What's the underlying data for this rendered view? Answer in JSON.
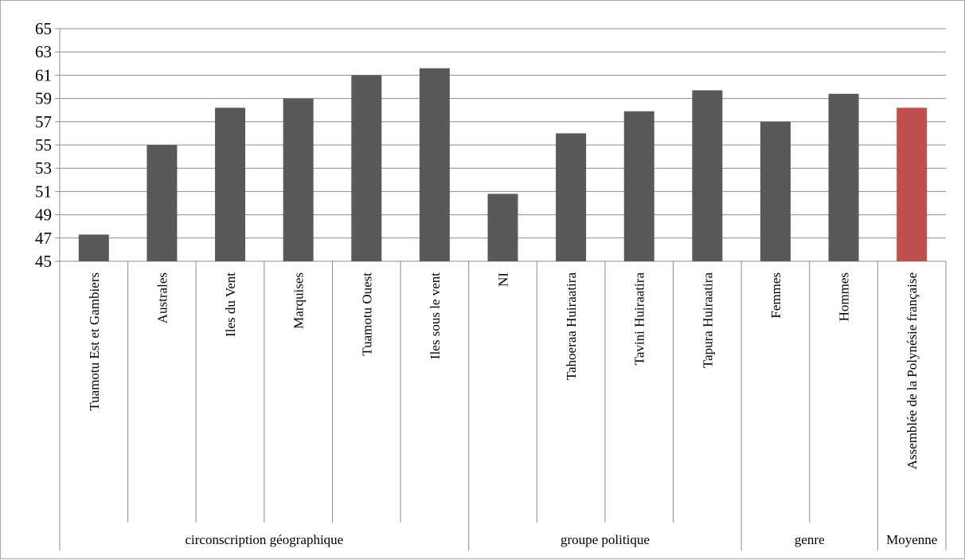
{
  "chart_data": {
    "type": "bar",
    "ylim": [
      45,
      65
    ],
    "y_ticks": [
      45,
      47,
      49,
      51,
      53,
      55,
      57,
      59,
      61,
      63,
      65
    ],
    "grid": true,
    "colors": {
      "bar": "#595959",
      "highlight": "#c0504d",
      "grid": "#8c8c8c"
    },
    "categories": [
      "Tuamotu Est et Gambiers",
      "Australes",
      "Iles du Vent",
      "Marquises",
      "Tuamotu Ouest",
      "Iles sous le vent",
      "NI",
      "Tahoeraa Huiraatira",
      "Tavini Huiraatira",
      "Tapura Huiraatira",
      "Femmes",
      "Hommes",
      "Assemblée de la Polynésie française"
    ],
    "values": [
      47.3,
      55.0,
      58.2,
      59.0,
      61.0,
      61.6,
      50.8,
      56.0,
      57.9,
      59.7,
      57.0,
      59.4,
      58.2
    ],
    "highlight_index": 12,
    "groups": [
      {
        "label": "circonscription géographique",
        "start": 0,
        "count": 6
      },
      {
        "label": "groupe politique",
        "start": 6,
        "count": 4
      },
      {
        "label": "genre",
        "start": 10,
        "count": 2
      },
      {
        "label": "Moyenne",
        "start": 12,
        "count": 1
      }
    ]
  }
}
